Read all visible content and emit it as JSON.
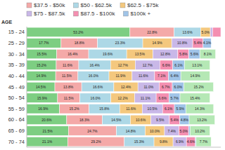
{
  "chart_data": {
    "type": "bar",
    "orientation": "horizontal",
    "stacked": true,
    "ylabel": "AGE",
    "categories": [
      "15 - 24",
      "25 - 29",
      "30 - 34",
      "35 - 39",
      "40 - 44",
      "45 - 49",
      "50 - 54",
      "55 - 59",
      "60 - 64",
      "65 - 69",
      "70 - 74"
    ],
    "series": [
      {
        "color": "#7dce82",
        "values": [
          53.2,
          17.7,
          15.5,
          15.2,
          14.9,
          14.5,
          15.9,
          16.9,
          20.6,
          21.5,
          21.1
        ],
        "value_labels": [
          "53.2%",
          "17.7%",
          "15.5%",
          "15.2%",
          "14.9%",
          "14.5%",
          "15.9%",
          "16.9%",
          "20.6%",
          "21.5%",
          "21.1%"
        ]
      },
      {
        "name": "$37.5 - $50k",
        "color": "#f4a9a8",
        "values": [
          22.8,
          18.8,
          16.4,
          11.6,
          11.5,
          13.8,
          11.5,
          15.2,
          18.3,
          24.7,
          29.2
        ],
        "value_labels": [
          "22.8%",
          "18.8%",
          "16.4%",
          "11.6%",
          "11.5%",
          "13.8%",
          "11.5%",
          "15.2%",
          "18.3%",
          "24.7%",
          "29.2%"
        ]
      },
      {
        "name": "$50 - $62.5k",
        "color": "#add8e6",
        "values": [
          13.6,
          23.3,
          19.6,
          16.4,
          16.0,
          16.6,
          16.0,
          15.8,
          14.5,
          14.8,
          15.3
        ],
        "value_labels": [
          "13.6%",
          "23.3%",
          "19.6%",
          "16.4%",
          "16.0%",
          "16.6%",
          "16.0%",
          "15.8%",
          "14.5%",
          "14.8%",
          "15.3%"
        ]
      },
      {
        "name": "$62.5 - $75k",
        "color": "#f4c87e",
        "values": [
          5.0,
          14.9,
          13.5,
          12.7,
          11.9,
          12.4,
          12.2,
          11.6,
          10.6,
          10.0,
          9.8
        ],
        "value_labels": [
          "5.0%",
          "14.9%",
          "13.5%",
          "12.7%",
          "11.9%",
          "12.4%",
          "12.2%",
          "11.6%",
          "10.6%",
          "10.0%",
          "9.8%"
        ]
      },
      {
        "name": "$75 - $87.5k",
        "color": "#c9b8e8",
        "values": [
          1.2,
          10.8,
          12.8,
          12.7,
          11.6,
          11.0,
          11.1,
          10.5,
          9.5,
          7.4,
          6.9
        ],
        "value_labels": [
          null,
          "10.8%",
          "12.8%",
          "12.7%",
          "11.6%",
          "11.0%",
          "11.1%",
          "10.5%",
          "9.5%",
          "7.4%",
          "6.9%"
        ]
      },
      {
        "name": "$87.5 - $100k",
        "color": "#f48fb1",
        "values": [
          4.2,
          5.4,
          5.8,
          6.6,
          7.1,
          6.7,
          6.6,
          6.1,
          5.4,
          5.0,
          4.6
        ],
        "value_labels": [
          null,
          "5.4%",
          "5.8%",
          "6.6%",
          "7.1%",
          "6.7%",
          "6.6%",
          "6.1%",
          "5.4%",
          "5.0%",
          "4.6%"
        ]
      },
      {
        "name": "$100k +",
        "color": "#a0c4e8",
        "values": [
          null,
          4.1,
          5.6,
          6.1,
          6.4,
          6.0,
          5.7,
          5.9,
          4.8,
          0.8,
          0.4
        ],
        "value_labels": [
          null,
          "4.1%",
          "5.6%",
          "6.1%",
          "6.4%",
          "6.0%",
          "5.7%",
          "5.9%",
          "4.8%",
          null,
          null
        ]
      },
      {
        "color": "#b5e8b5",
        "values": [
          null,
          null,
          8.1,
          13.1,
          14.9,
          15.2,
          15.4,
          14.3,
          13.2,
          10.2,
          7.7
        ],
        "value_labels": [
          null,
          null,
          "8.1%",
          "13.1%",
          "14.9%",
          "15.2%",
          "15.4%",
          "14.3%",
          "13.2%",
          "10.2%",
          "7.7%"
        ]
      }
    ],
    "xlim": [
      0,
      100
    ],
    "data_labels": true,
    "tick_labels": "y",
    "legend": "top"
  }
}
